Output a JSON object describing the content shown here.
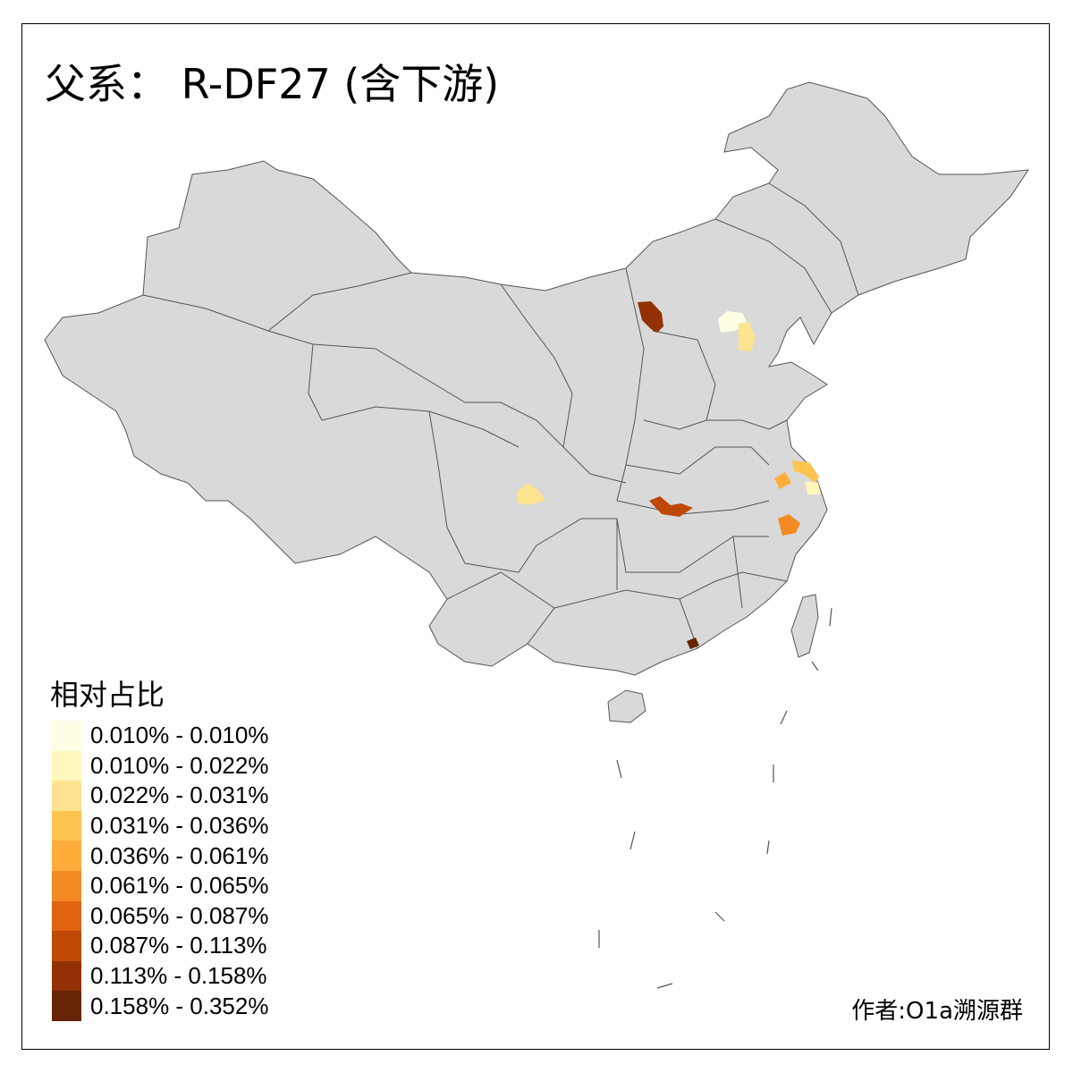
{
  "title": "父系： R-DF27 (含下游)",
  "legend": {
    "title": "相对占比",
    "items": [
      {
        "label": "0.010% - 0.010%",
        "color": "#ffffe5"
      },
      {
        "label": "0.010% - 0.022%",
        "color": "#fff7bc"
      },
      {
        "label": "0.022% - 0.031%",
        "color": "#fee391"
      },
      {
        "label": "0.031% - 0.036%",
        "color": "#fec44f"
      },
      {
        "label": "0.036% - 0.061%",
        "color": "#feac3a"
      },
      {
        "label": "0.061% - 0.065%",
        "color": "#f48a24"
      },
      {
        "label": "0.065% - 0.087%",
        "color": "#e0640f"
      },
      {
        "label": "0.087% - 0.113%",
        "color": "#c04806"
      },
      {
        "label": "0.113% - 0.158%",
        "color": "#933104"
      },
      {
        "label": "0.158% - 0.352%",
        "color": "#662506"
      }
    ]
  },
  "map": {
    "base_color": "#d9d9d9",
    "border_color": "#555555",
    "highlighted_region_classes": [
      8,
      0,
      2,
      3,
      4,
      1,
      5,
      7,
      9,
      2
    ]
  },
  "credit": "作者:O1a溯源群"
}
